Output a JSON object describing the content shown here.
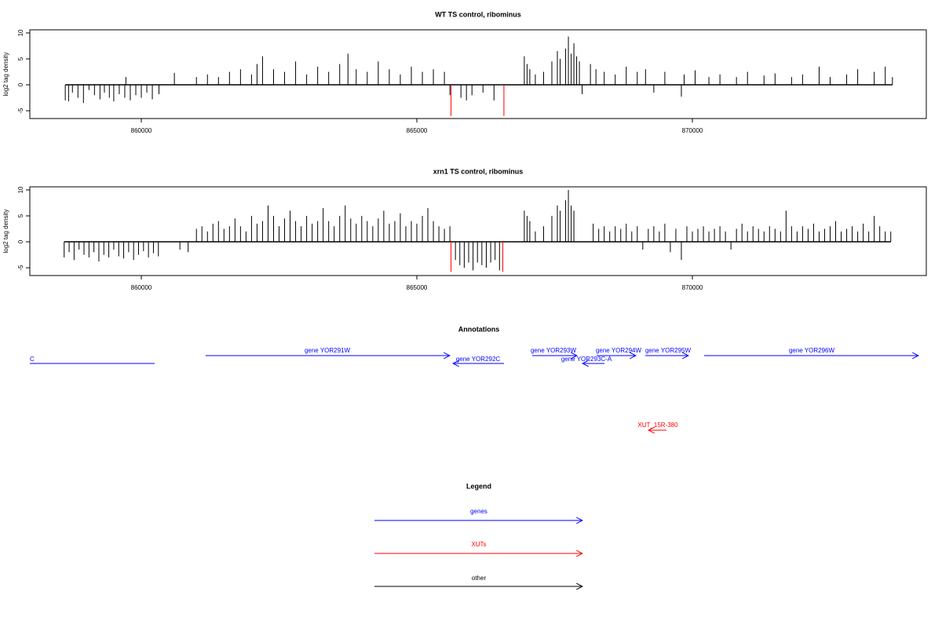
{
  "chart_data": [
    {
      "type": "bar",
      "title": "WT TS control, ribominus",
      "ylabel": "log2 tag density",
      "xlim": [
        857977,
        874245
      ],
      "ylim": [
        -6.5,
        10.6
      ],
      "xticks": [
        860000,
        865000,
        870000
      ],
      "yticks": [
        -5,
        0,
        5,
        10
      ],
      "series": [
        {
          "color": "#000000",
          "x": [
            858620,
            858680,
            858750,
            858850,
            858950,
            859050,
            859150,
            859250,
            859330,
            859420,
            859500,
            859600,
            859700,
            859720,
            859800,
            859900,
            860000,
            860100,
            860200,
            860320,
            860600,
            861000,
            861200,
            861400,
            861600,
            861800,
            862000,
            862100,
            862200,
            862400,
            862600,
            862800,
            863000,
            863200,
            863400,
            863600,
            863750,
            863900,
            864100,
            864300,
            864500,
            864700,
            864900,
            865100,
            865300,
            865500,
            865600,
            865800,
            865900,
            866000,
            866200,
            866400,
            866950,
            867000,
            867050,
            867150,
            867300,
            867450,
            867550,
            867600,
            867700,
            867750,
            867800,
            867850,
            867900,
            867950,
            868000,
            868150,
            868250,
            868400,
            868600,
            868800,
            869000,
            869150,
            869300,
            869500,
            869800,
            869850,
            870050,
            870300,
            870500,
            870800,
            871000,
            871300,
            871500,
            871800,
            872000,
            872300,
            872500,
            872800,
            873000,
            873300,
            873500,
            873630
          ],
          "values": [
            -3,
            -3.2,
            -1.5,
            -2.5,
            -3.5,
            -1,
            -2,
            -2.8,
            -1.5,
            -2.5,
            -3.2,
            -1.8,
            -2.5,
            1.5,
            -3,
            -2,
            -2.5,
            -1.5,
            -2.8,
            -1.8,
            2.3,
            1.5,
            2,
            1.5,
            2.5,
            3,
            2,
            4,
            5.5,
            3,
            2.5,
            4.5,
            2,
            3.5,
            2.5,
            4,
            6,
            3,
            2.5,
            4.5,
            3,
            2,
            3.5,
            2.5,
            3,
            2.5,
            -2,
            -2.5,
            -3,
            -2,
            -1.5,
            -3,
            5.5,
            4,
            3,
            2,
            2.5,
            4.5,
            6.5,
            5,
            7,
            9.3,
            6,
            8,
            5.5,
            4.5,
            -1.8,
            4,
            3,
            2.5,
            2,
            3.5,
            2.5,
            3,
            -1.5,
            2.5,
            -2.3,
            2,
            2.8,
            1.5,
            2,
            1.5,
            2.5,
            1.8,
            2.2,
            1.5,
            2,
            3.5,
            1.5,
            2,
            3,
            2.5,
            3.5,
            1.5
          ]
        },
        {
          "color": "#ff0000",
          "x": [
            865620,
            866580
          ],
          "values": [
            -6,
            -6
          ]
        }
      ]
    },
    {
      "type": "bar",
      "title": "xrn1 TS control, ribominus",
      "ylabel": "log2 tag density",
      "xlim": [
        857977,
        874245
      ],
      "ylim": [
        -6.5,
        10.6
      ],
      "xticks": [
        860000,
        865000,
        870000
      ],
      "yticks": [
        -5,
        0,
        5,
        10
      ],
      "series": [
        {
          "color": "#000000",
          "x": [
            858600,
            858690,
            858780,
            858870,
            858960,
            859050,
            859140,
            859230,
            859320,
            859410,
            859500,
            859590,
            859680,
            859770,
            859860,
            859950,
            860040,
            860130,
            860220,
            860310,
            860700,
            860850,
            861000,
            861100,
            861200,
            861300,
            861400,
            861500,
            861600,
            861700,
            861800,
            861900,
            862000,
            862100,
            862200,
            862300,
            862400,
            862500,
            862600,
            862700,
            862800,
            862900,
            863000,
            863100,
            863200,
            863300,
            863400,
            863500,
            863600,
            863700,
            863800,
            863900,
            864000,
            864100,
            864200,
            864300,
            864400,
            864500,
            864600,
            864700,
            864800,
            864900,
            865000,
            865100,
            865200,
            865300,
            865400,
            865500,
            865600,
            865700,
            865780,
            865860,
            865940,
            866020,
            866100,
            866180,
            866260,
            866340,
            866420,
            866500,
            866950,
            867000,
            867050,
            867150,
            867300,
            867450,
            867550,
            867600,
            867700,
            867750,
            867800,
            867850,
            868200,
            868300,
            868400,
            868500,
            868600,
            868700,
            868800,
            868900,
            869000,
            869100,
            869200,
            869300,
            869400,
            869500,
            869600,
            869700,
            869800,
            869900,
            870000,
            870100,
            870200,
            870300,
            870400,
            870500,
            870600,
            870700,
            870800,
            870900,
            871000,
            871100,
            871200,
            871300,
            871400,
            871500,
            871600,
            871700,
            871800,
            871900,
            872000,
            872100,
            872200,
            872300,
            872400,
            872500,
            872600,
            872700,
            872800,
            872900,
            873000,
            873100,
            873200,
            873300,
            873400,
            873500,
            873600
          ],
          "values": [
            -3,
            -2,
            -3.5,
            -1.5,
            -2.5,
            -3,
            -2,
            -3.8,
            -2.5,
            -3,
            -1.5,
            -2.8,
            -3.2,
            -2,
            -3.5,
            -2.5,
            -1.8,
            -3,
            -2.2,
            -2.8,
            -1.5,
            -2,
            2.5,
            3,
            2,
            3.5,
            4,
            2.5,
            3,
            4.5,
            3,
            2,
            5,
            3.5,
            4,
            7,
            5,
            3,
            4.5,
            6,
            4,
            3,
            5,
            3.5,
            4,
            6.5,
            4,
            3,
            5,
            7,
            4.5,
            3.5,
            5,
            4,
            3,
            4.5,
            6,
            3.5,
            4,
            5.5,
            3,
            4,
            3.5,
            5,
            6.5,
            4,
            3,
            2.5,
            3,
            -3.5,
            -4.5,
            -5,
            -4,
            -5.5,
            -4,
            -4.5,
            -5,
            -4,
            -3.5,
            -5.5,
            6,
            5,
            4,
            2,
            3,
            5,
            7,
            6,
            8,
            10,
            7,
            6,
            3.5,
            2.5,
            3,
            2,
            3,
            2.5,
            3.5,
            2,
            3,
            -1.5,
            2.5,
            3,
            2,
            3.5,
            -2,
            2.5,
            -3.5,
            3,
            2,
            2.5,
            3,
            2,
            2.5,
            3,
            2,
            -1.5,
            2.5,
            3.5,
            2,
            3,
            2.5,
            2,
            3,
            2.5,
            2,
            6,
            3,
            2,
            3,
            2.5,
            3.5,
            2,
            2.5,
            3,
            4,
            2,
            2.5,
            3,
            2,
            3.5,
            2,
            5,
            3,
            2,
            2
          ]
        },
        {
          "color": "#ff0000",
          "x": [
            865620,
            866560
          ],
          "values": [
            -5.8,
            -5.8
          ]
        }
      ]
    }
  ],
  "annotations": {
    "title": "Annotations",
    "features": [
      "C",
      "gene YOR291W",
      "gene YOR292C",
      "gene YOR293W",
      "gene YOR293C-A",
      "gene YOR294W",
      "gene YOR295W",
      "gene YOR296W",
      "XUT_15R-380"
    ]
  },
  "legend": {
    "title": "Legend",
    "entries": [
      "genes",
      "XUTs",
      "other"
    ]
  }
}
